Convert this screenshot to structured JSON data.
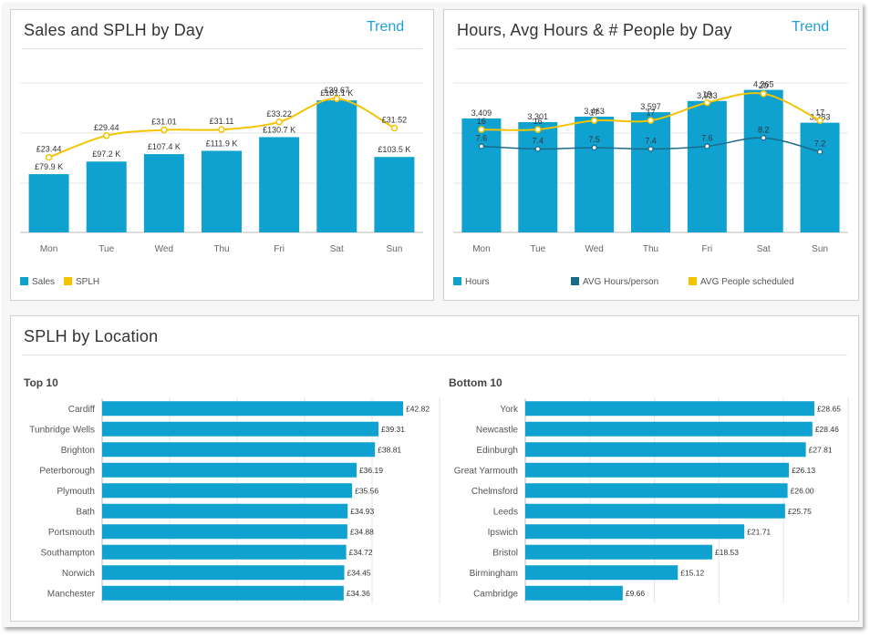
{
  "panels": {
    "sales": {
      "title": "Sales and SPLH by Day",
      "link": "Trend"
    },
    "hours": {
      "title": "Hours, Avg Hours & # People by Day",
      "link": "Trend"
    },
    "location": {
      "title": "SPLH by Location",
      "top_label": "Top 10",
      "bottom_label": "Bottom 10"
    }
  },
  "colors": {
    "bar": "#0fa1d0",
    "yellow": "#f5c400",
    "teal": "#1b6a8a",
    "grid": "#e6e6e6",
    "text": "#333333",
    "axis": "#888888"
  },
  "chart_data": [
    {
      "type": "bar",
      "id": "sales_splh",
      "categories": [
        "Mon",
        "Tue",
        "Wed",
        "Thu",
        "Fri",
        "Sat",
        "Sun"
      ],
      "series": [
        {
          "name": "Sales",
          "kind": "bar",
          "values": [
            79.9,
            97.2,
            107.4,
            111.9,
            130.7,
            181.1,
            103.5
          ],
          "labels": [
            "£79.9 K",
            "£97.2 K",
            "£107.4 K",
            "£111.9 K",
            "£130.7 K",
            "£181.1 K",
            "£103.5 K"
          ]
        },
        {
          "name": "SPLH",
          "kind": "line",
          "values": [
            23.44,
            29.44,
            31.01,
            31.11,
            33.22,
            39.67,
            31.52
          ],
          "labels": [
            "£23.44",
            "£29.44",
            "£31.01",
            "£31.11",
            "£33.22",
            "£39.67",
            "£31.52"
          ]
        }
      ],
      "legend": [
        "Sales",
        "SPLH"
      ],
      "legend_position": "bottom-left"
    },
    {
      "type": "bar",
      "id": "hours_people",
      "categories": [
        "Mon",
        "Tue",
        "Wed",
        "Thu",
        "Fri",
        "Sat",
        "Sun"
      ],
      "series": [
        {
          "name": "Hours",
          "kind": "bar",
          "values": [
            3409,
            3301,
            3463,
            3597,
            3933,
            4265,
            3283
          ],
          "labels": [
            "3,409",
            "3,301",
            "3,463",
            "3,597",
            "3,933",
            "4,265",
            "3,283"
          ]
        },
        {
          "name": "AVG Hours/person",
          "kind": "line",
          "values": [
            7.6,
            7.4,
            7.5,
            7.4,
            7.6,
            8.2,
            7.2
          ],
          "labels": [
            "7.6",
            "7.4",
            "7.5",
            "7.4",
            "7.6",
            "8.2",
            "7.2"
          ]
        },
        {
          "name": "AVG People scheduled",
          "kind": "line",
          "values": [
            16,
            16,
            17,
            17,
            19,
            20,
            17
          ],
          "labels": [
            "16",
            "16",
            "17",
            "17",
            "19",
            "20",
            "17"
          ]
        }
      ],
      "legend": [
        "Hours",
        "AVG Hours/person",
        "AVG People scheduled"
      ],
      "legend_position": "bottom"
    },
    {
      "type": "bar",
      "orientation": "horizontal",
      "id": "top10",
      "title": "Top 10",
      "categories": [
        "Cardiff",
        "Tunbridge Wells",
        "Brighton",
        "Peterborough",
        "Plymouth",
        "Bath",
        "Portsmouth",
        "Southampton",
        "Norwich",
        "Manchester"
      ],
      "values": [
        42.82,
        39.31,
        38.81,
        36.19,
        35.56,
        34.93,
        34.88,
        34.72,
        34.45,
        34.36
      ],
      "labels": [
        "£42.82",
        "£39.31",
        "£38.81",
        "£36.19",
        "£35.56",
        "£34.93",
        "£34.88",
        "£34.72",
        "£34.45",
        "£34.36"
      ],
      "xlim": [
        0,
        48
      ]
    },
    {
      "type": "bar",
      "orientation": "horizontal",
      "id": "bottom10",
      "title": "Bottom 10",
      "categories": [
        "York",
        "Newcastle",
        "Edinburgh",
        "Great Yarmouth",
        "Chelmsford",
        "Leeds",
        "Ipswich",
        "Bristol",
        "Birmingham",
        "Cambridge"
      ],
      "values": [
        28.65,
        28.46,
        27.81,
        26.13,
        26.0,
        25.75,
        21.71,
        18.53,
        15.12,
        9.66
      ],
      "labels": [
        "£28.65",
        "£28.46",
        "£27.81",
        "£26.13",
        "£26.00",
        "£25.75",
        "£21.71",
        "£18.53",
        "£15.12",
        "£9.66"
      ],
      "xlim": [
        0,
        32
      ]
    }
  ]
}
